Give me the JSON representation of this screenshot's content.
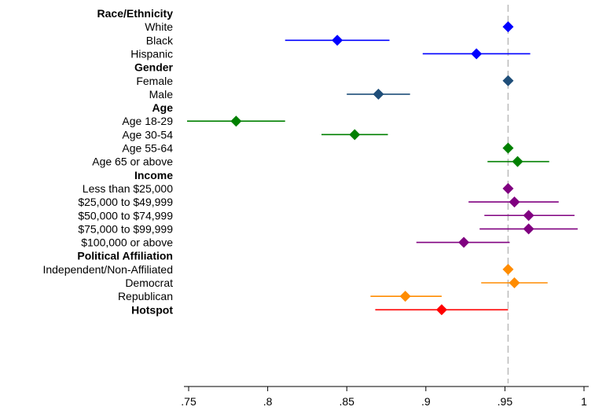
{
  "chart_data": {
    "type": "forest",
    "xlim": [
      0.75,
      1.0
    ],
    "x_ticks": [
      {
        "value": 0.75,
        "label": ".75"
      },
      {
        "value": 0.8,
        "label": ".8"
      },
      {
        "value": 0.85,
        "label": ".85"
      },
      {
        "value": 0.9,
        "label": ".9"
      },
      {
        "value": 0.95,
        "label": ".95"
      },
      {
        "value": 1.0,
        "label": "1"
      }
    ],
    "reference_line": 0.952,
    "marker": "diamond",
    "grid": false,
    "groups": [
      {
        "title": "Race/Ethnicity",
        "color": "#0000ff",
        "items": [
          {
            "label": "White",
            "estimate": 0.952,
            "low": 0.952,
            "high": 0.952
          },
          {
            "label": "Black",
            "estimate": 0.844,
            "low": 0.811,
            "high": 0.877
          },
          {
            "label": "Hispanic",
            "estimate": 0.932,
            "low": 0.898,
            "high": 0.966
          }
        ]
      },
      {
        "title": "Gender",
        "color": "#1f4e79",
        "items": [
          {
            "label": "Female",
            "estimate": 0.952,
            "low": 0.952,
            "high": 0.952
          },
          {
            "label": "Male",
            "estimate": 0.87,
            "low": 0.85,
            "high": 0.89
          }
        ]
      },
      {
        "title": "Age",
        "color": "#008000",
        "items": [
          {
            "label": "Age 18-29",
            "estimate": 0.78,
            "low": 0.749,
            "high": 0.811
          },
          {
            "label": "Age 30-54",
            "estimate": 0.855,
            "low": 0.834,
            "high": 0.876
          },
          {
            "label": "Age 55-64",
            "estimate": 0.952,
            "low": 0.952,
            "high": 0.952
          },
          {
            "label": "Age 65 or above",
            "estimate": 0.958,
            "low": 0.939,
            "high": 0.978
          }
        ]
      },
      {
        "title": "Income",
        "color": "#800080",
        "items": [
          {
            "label": "Less than $25,000",
            "estimate": 0.952,
            "low": 0.952,
            "high": 0.952
          },
          {
            "label": "$25,000 to $49,999",
            "estimate": 0.956,
            "low": 0.927,
            "high": 0.984
          },
          {
            "label": "$50,000 to $74,999",
            "estimate": 0.965,
            "low": 0.937,
            "high": 0.994
          },
          {
            "label": "$75,000 to $99,999",
            "estimate": 0.965,
            "low": 0.934,
            "high": 0.996
          },
          {
            "label": "$100,000 or above",
            "estimate": 0.924,
            "low": 0.894,
            "high": 0.953
          }
        ]
      },
      {
        "title": "Political Affiliation",
        "color": "#ff8c00",
        "items": [
          {
            "label": "Independent/Non-Affiliated",
            "estimate": 0.952,
            "low": 0.952,
            "high": 0.952
          },
          {
            "label": "Democrat",
            "estimate": 0.956,
            "low": 0.935,
            "high": 0.977
          },
          {
            "label": "Republican",
            "estimate": 0.887,
            "low": 0.865,
            "high": 0.91
          }
        ]
      },
      {
        "title": "Hotspot",
        "color": "#ff0000",
        "items": [
          {
            "label": "",
            "estimate": 0.91,
            "low": 0.868,
            "high": 0.952
          }
        ]
      }
    ]
  }
}
